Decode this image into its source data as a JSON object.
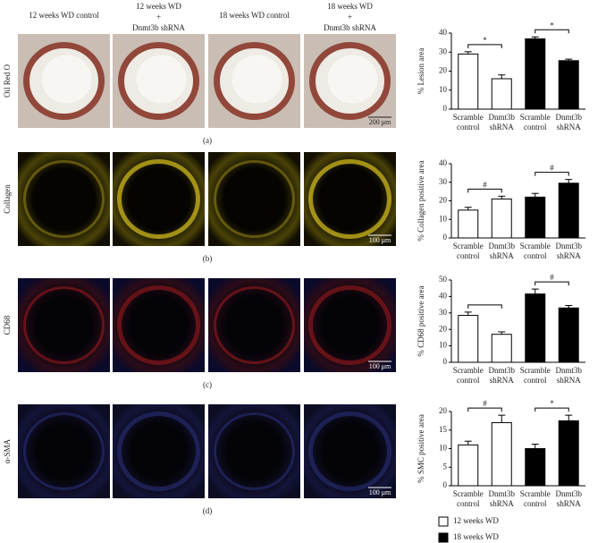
{
  "figure": {
    "columns": [
      [
        "12 weeks WD control"
      ],
      [
        "12 weeks WD",
        "+",
        "Dnmt3b shRNA"
      ],
      [
        "18 weeks WD control"
      ],
      [
        "18 weeks WD",
        "+",
        "Dnmt3b shRNA"
      ]
    ],
    "rows": [
      {
        "label": "Oil Red O",
        "panel": "(a)",
        "scale_bar": "200 μm"
      },
      {
        "label": "Collagen",
        "panel": "(b)",
        "scale_bar": "100 μm"
      },
      {
        "label": "CD68",
        "panel": "(c)",
        "scale_bar": "100 μm"
      },
      {
        "label": "α-SMA",
        "panel": "(d)",
        "scale_bar": "100 μm"
      }
    ]
  },
  "chart_data": [
    {
      "type": "bar",
      "y_label": "% Lesion area",
      "categories": [
        "Scramble control",
        "Dnmt3b shRNA",
        "Scramble control",
        "Dnmt3b shRNA"
      ],
      "series": [
        {
          "name": "12 weeks WD",
          "color": "#ffffff",
          "values": [
            29,
            16,
            null,
            null
          ],
          "errors": [
            1.2,
            2,
            null,
            null
          ]
        },
        {
          "name": "18 weeks WD",
          "color": "#000000",
          "values": [
            null,
            null,
            37,
            25.5
          ],
          "errors": [
            null,
            null,
            1,
            0.8
          ]
        }
      ],
      "significance": [
        "*",
        "*"
      ],
      "ylim": [
        0,
        40
      ],
      "yticks": [
        0,
        10,
        20,
        30,
        40
      ]
    },
    {
      "type": "bar",
      "y_label": "% Collagen positive area",
      "categories": [
        "Scramble control",
        "Dnmt3b shRNA",
        "Scramble control",
        "Dnmt3b shRNA"
      ],
      "series": [
        {
          "name": "12 weeks WD",
          "color": "#ffffff",
          "values": [
            15,
            21,
            null,
            null
          ],
          "errors": [
            1.5,
            1.5,
            null,
            null
          ]
        },
        {
          "name": "18 weeks WD",
          "color": "#000000",
          "values": [
            null,
            null,
            22,
            29.5
          ],
          "errors": [
            null,
            null,
            2,
            2
          ]
        }
      ],
      "significance": [
        "#",
        "#"
      ],
      "ylim": [
        0,
        40
      ],
      "yticks": [
        0,
        10,
        20,
        30,
        40
      ]
    },
    {
      "type": "bar",
      "y_label": "% CD68 positive area",
      "categories": [
        "Scramble control",
        "Dnmt3b shRNA",
        "Scramble control",
        "Dnmt3b shRNA"
      ],
      "series": [
        {
          "name": "12 weeks WD",
          "color": "#ffffff",
          "values": [
            28.5,
            17,
            null,
            null
          ],
          "errors": [
            2,
            1.5,
            null,
            null
          ]
        },
        {
          "name": "18 weeks WD",
          "color": "#000000",
          "values": [
            null,
            null,
            41.5,
            33
          ],
          "errors": [
            null,
            null,
            3,
            1.5
          ]
        }
      ],
      "significance": [
        null,
        "#"
      ],
      "ylim": [
        0,
        50
      ],
      "yticks": [
        0,
        10,
        20,
        30,
        40,
        50
      ]
    },
    {
      "type": "bar",
      "y_label": "% SMC positive area",
      "categories": [
        "Scramble control",
        "Dnmt3b shRNA",
        "Scramble control",
        "Dnmt3b shRNA"
      ],
      "series": [
        {
          "name": "12 weeks WD",
          "color": "#ffffff",
          "values": [
            11,
            17,
            null,
            null
          ],
          "errors": [
            1,
            2,
            null,
            null
          ]
        },
        {
          "name": "18 weeks WD",
          "color": "#000000",
          "values": [
            null,
            null,
            10,
            17.5
          ],
          "errors": [
            null,
            null,
            1.2,
            1.5
          ]
        }
      ],
      "significance": [
        "#",
        "*"
      ],
      "ylim": [
        0,
        20
      ],
      "yticks": [
        0,
        5,
        10,
        15,
        20
      ]
    }
  ]
}
